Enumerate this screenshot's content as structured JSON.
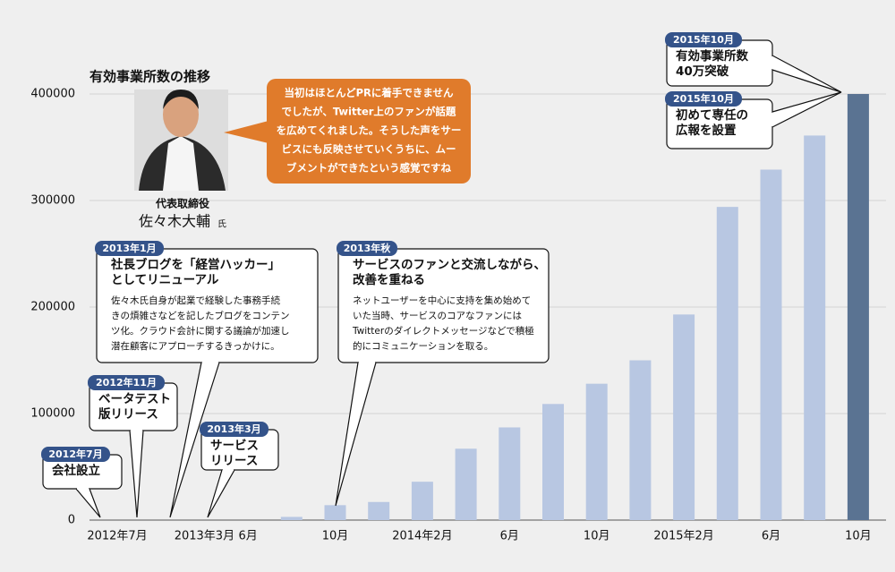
{
  "chart_data": {
    "type": "bar",
    "title": "有効事業所数の推移",
    "categories": [
      "2012年7月",
      null,
      "2013年3月",
      "6月",
      null,
      "10月",
      null,
      "2014年2月",
      null,
      "6月",
      null,
      "10月",
      null,
      "2015年2月",
      null,
      "6月",
      null,
      "10月"
    ],
    "values": [
      null,
      null,
      null,
      null,
      3000,
      14000,
      17000,
      36000,
      67000,
      87000,
      109000,
      128000,
      150000,
      193000,
      294000,
      329000,
      361000,
      400000
    ],
    "colors": [
      "#b8c7e2",
      "#b8c7e2",
      "#b8c7e2",
      "#b8c7e2",
      "#b8c7e2",
      "#b8c7e2",
      "#b8c7e2",
      "#b8c7e2",
      "#b8c7e2",
      "#b8c7e2",
      "#b8c7e2",
      "#b8c7e2",
      "#b8c7e2",
      "#b8c7e2",
      "#b8c7e2",
      "#b8c7e2",
      "#b8c7e2",
      "#5a7392"
    ],
    "ylim": [
      0,
      400000
    ],
    "yticks": [
      0,
      100000,
      200000,
      300000,
      400000
    ],
    "grid": true,
    "annotations": [
      {
        "date": "2012年7月",
        "title": [
          "会社設立"
        ]
      },
      {
        "date": "2012年11月",
        "title": [
          "ベータテスト",
          "版リリース"
        ]
      },
      {
        "date": "2013年1月",
        "title": [
          "社長ブログを「経営ハッカー」",
          "としてリニューアル"
        ],
        "body": [
          "佐々木氏自身が起業で経験した事務手続",
          "きの煩雑さなどを記したブログをコンテン",
          "ツ化。クラウド会計に関する議論が加速し",
          "潜在顧客にアプローチするきっかけに。"
        ]
      },
      {
        "date": "2013年3月",
        "title": [
          "サービス",
          "リリース"
        ]
      },
      {
        "date": "2013年秋",
        "title": [
          "サービスのファンと交流しながら、",
          "改善を重ねる"
        ],
        "body": [
          "ネットユーザーを中心に支持を集め始めて",
          "いた当時、サービスのコアなファンには",
          "Twitterのダイレクトメッセージなどで積極",
          "的にコミュニケーションを取る。"
        ]
      },
      {
        "date": "2015年10月",
        "title": [
          "有効事業所数",
          "40万突破"
        ]
      },
      {
        "date": "2015年10月",
        "title": [
          "初めて専任の",
          "広報を設置"
        ]
      }
    ],
    "quote": {
      "lines": [
        "当初はほとんどPRに着手できません",
        "でしたが、Twitter上のファンが話題",
        "を広めてくれました。そうした声をサー",
        "ビスにも反映させていくうちに、ムー",
        "ブメントができたという感覚ですね"
      ],
      "role": "代表取締役",
      "name": "佐々木大輔",
      "honorific": "氏"
    }
  }
}
